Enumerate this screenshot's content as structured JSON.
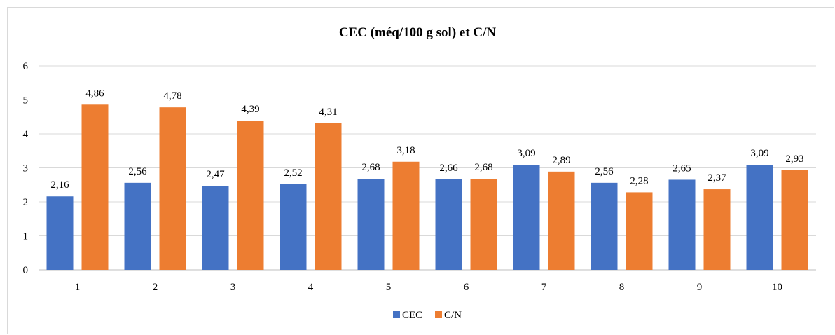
{
  "chart_data": {
    "type": "bar",
    "title": "CEC (méq/100 g sol) et C/N",
    "xlabel": "",
    "ylabel": "",
    "categories": [
      "1",
      "2",
      "3",
      "4",
      "5",
      "6",
      "7",
      "8",
      "9",
      "10"
    ],
    "ylim": [
      0,
      6
    ],
    "yticks": [
      "0",
      "1",
      "2",
      "3",
      "4",
      "5",
      "6"
    ],
    "grid": true,
    "legend_position": "bottom",
    "series": [
      {
        "name": "CEC",
        "color": "#4472C4",
        "values": [
          2.16,
          2.56,
          2.47,
          2.52,
          2.68,
          2.66,
          3.09,
          2.56,
          2.65,
          3.09
        ],
        "labels": [
          "2,16",
          "2,56",
          "2,47",
          "2,52",
          "2,68",
          "2,66",
          "3,09",
          "2,56",
          "2,65",
          "3,09"
        ]
      },
      {
        "name": "C/N",
        "color": "#ED7D31",
        "values": [
          4.86,
          4.78,
          4.39,
          4.31,
          3.18,
          2.68,
          2.89,
          2.28,
          2.37,
          2.93
        ],
        "labels": [
          "4,86",
          "4,78",
          "4,39",
          "4,31",
          "3,18",
          "2,68",
          "2,89",
          "2,28",
          "2,37",
          "2,93"
        ]
      }
    ]
  }
}
